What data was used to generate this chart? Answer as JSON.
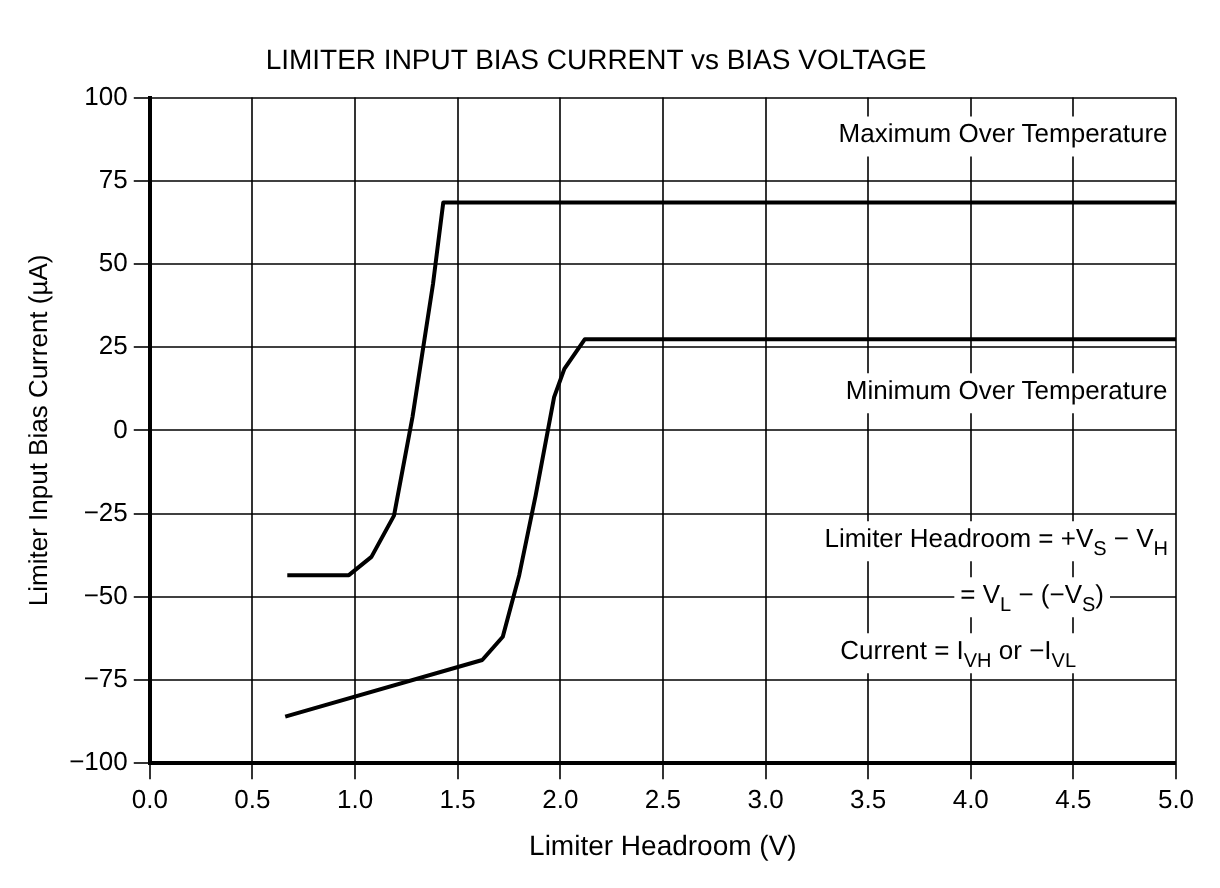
{
  "chart_data": {
    "type": "line",
    "title": "LIMITER INPUT BIAS CURRENT vs BIAS VOLTAGE",
    "xlabel": "Limiter Headroom (V)",
    "ylabel": "Limiter Input Bias Current (µA)",
    "series": [
      {
        "name": "Maximum Over Temperature",
        "color": "#000000",
        "x": [
          0.67,
          0.97,
          1.08,
          1.19,
          1.28,
          1.38,
          1.43,
          5.0
        ],
        "values": [
          -43.5,
          -43.5,
          -38,
          -25.6,
          4,
          44,
          68.5,
          68.5
        ]
      },
      {
        "name": "Minimum Over Temperature",
        "color": "#000000",
        "x": [
          0.66,
          1.62,
          1.72,
          1.8,
          1.88,
          1.97,
          2.02,
          2.12,
          5.0
        ],
        "values": [
          -86,
          -69,
          -62,
          -43.5,
          -19.6,
          10,
          18.5,
          27.4,
          27.4
        ]
      }
    ],
    "annotations": [
      "Limiter Headroom = +V$_{S}$ − V$_{H}$",
      "= V$_{L}$ − (−V$_{S}$)",
      "Current = I$_{VH}$ or −I$_{VL}$"
    ],
    "xlim": [
      0,
      5
    ],
    "ylim": [
      -100,
      100
    ],
    "xticks": [
      {
        "value": 0,
        "label": "0.0"
      },
      0.5,
      {
        "value": 1,
        "label": "1.0"
      },
      1.5,
      {
        "value": 2,
        "label": "2.0"
      },
      2.5,
      {
        "value": 3,
        "label": "3.0"
      },
      3.5,
      {
        "value": 4,
        "label": "4.0"
      },
      4.5,
      {
        "value": 5,
        "label": "5.0"
      }
    ],
    "yticks": [
      {
        "value": -100,
        "label": "−100"
      },
      {
        "value": -75,
        "label": "−75"
      },
      {
        "value": -50,
        "label": "−50"
      },
      {
        "value": -25,
        "label": "−25"
      },
      0,
      25,
      50,
      75,
      100
    ],
    "grid": true,
    "legend": false,
    "marker": "none",
    "line_style": "solid"
  }
}
